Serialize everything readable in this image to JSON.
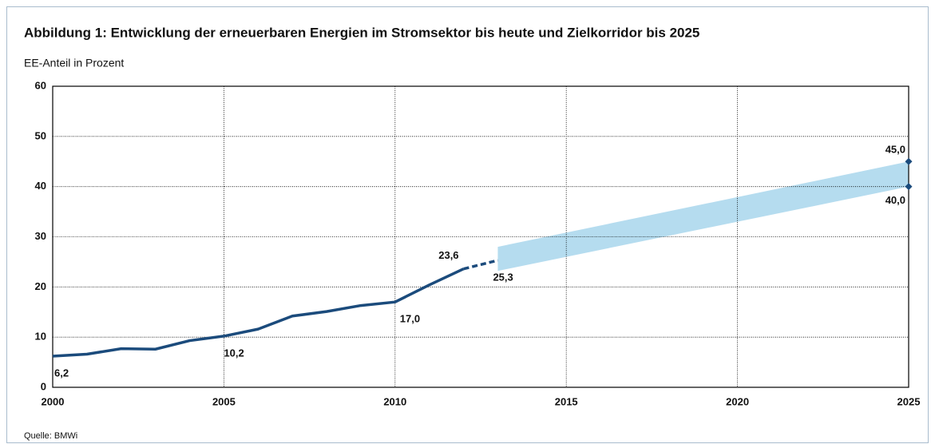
{
  "chart_data": {
    "type": "line",
    "title": "Abbildung 1: Entwicklung der erneuerbaren Energien im Stromsektor bis heute und Zielkorridor bis 2025",
    "y_label": "EE-Anteil in Prozent",
    "source": "Quelle: BMWi",
    "xlim": [
      2000,
      2025
    ],
    "xticks": [
      2000,
      2005,
      2010,
      2015,
      2020,
      2025
    ],
    "ylim": [
      0,
      60
    ],
    "yticks": [
      0,
      10,
      20,
      30,
      40,
      50,
      60
    ],
    "grid": true,
    "series": [
      {
        "color": "#1b4b7c",
        "dashed": false,
        "x": [
          2000,
          2001,
          2002,
          2003,
          2004,
          2005,
          2006,
          2007,
          2008,
          2009,
          2010,
          2011,
          2012
        ],
        "values": [
          6.2,
          6.6,
          7.7,
          7.6,
          9.3,
          10.2,
          11.6,
          14.2,
          15.1,
          16.3,
          17.0,
          20.4,
          23.6
        ],
        "value_labels": [
          "6,2",
          null,
          null,
          null,
          null,
          "10,2",
          null,
          null,
          null,
          null,
          "17,0",
          null,
          "23,6"
        ]
      },
      {
        "color": "#1b4b7c",
        "dashed": true,
        "x": [
          2012,
          2013
        ],
        "values": [
          23.6,
          25.3
        ],
        "value_labels": [
          null,
          "25,3"
        ]
      }
    ],
    "band": {
      "color": "#b5dcef",
      "marker_color": "#1b4b7c",
      "x": [
        2013,
        2025
      ],
      "lower": [
        23.2,
        40.0
      ],
      "upper": [
        28.0,
        45.0
      ],
      "lower_labels": [
        null,
        "40,0"
      ],
      "upper_labels": [
        null,
        "45,0"
      ]
    }
  }
}
